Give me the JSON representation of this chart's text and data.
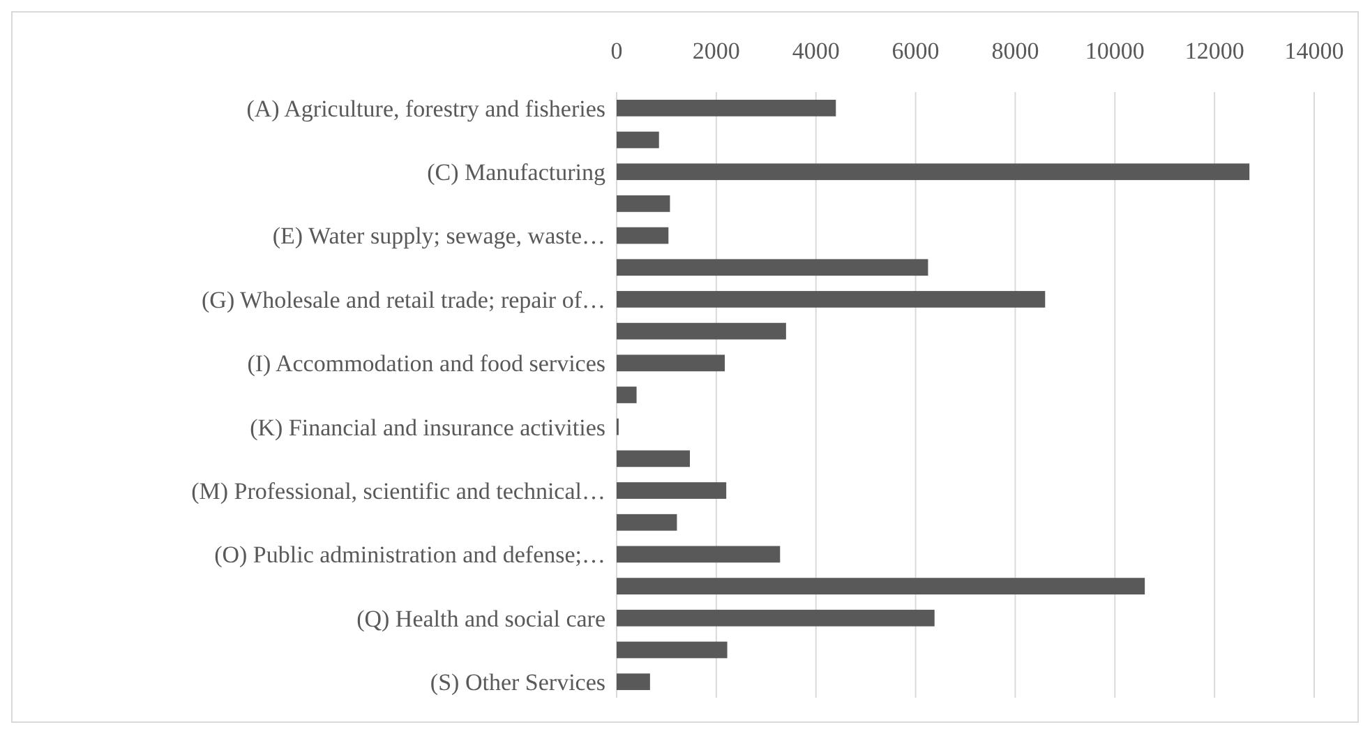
{
  "chart_data": {
    "type": "bar",
    "orientation": "horizontal",
    "categories": [
      "(A) Agriculture, forestry and fisheries",
      null,
      "(C) Manufacturing",
      null,
      "(E) Water supply; sewage, waste…",
      null,
      "(G) Wholesale and retail trade; repair of…",
      null,
      "(I) Accommodation and food services",
      null,
      "(K) Financial and insurance activities",
      null,
      "(M) Professional, scientific and technical…",
      null,
      "(O) Public administration and defense;…",
      null,
      "(Q) Health and social care",
      null,
      "(S) Other Services"
    ],
    "values": [
      4400,
      850,
      12700,
      1070,
      1040,
      6250,
      8600,
      3400,
      2170,
      400,
      40,
      1470,
      2200,
      1210,
      3280,
      10600,
      6380,
      2220,
      670
    ],
    "color": "#595959",
    "xlim": [
      0,
      14000
    ],
    "xticks": [
      0,
      2000,
      4000,
      6000,
      8000,
      10000,
      12000,
      14000
    ],
    "grid": "x"
  }
}
